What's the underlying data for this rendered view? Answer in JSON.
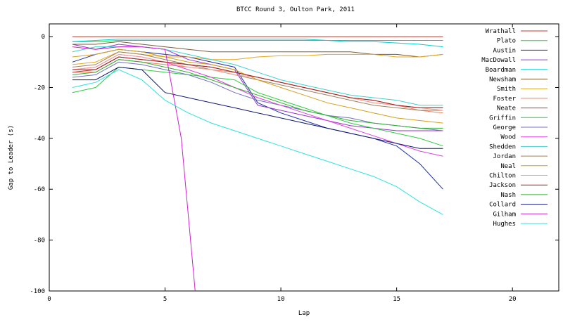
{
  "chart_data": {
    "type": "line",
    "title": "BTCC Round 3, Oulton Park, 2011",
    "xlabel": "Lap",
    "ylabel": "Gap to Leader (s)",
    "xlim": [
      0,
      22
    ],
    "ylim": [
      -100,
      5
    ],
    "xticks": [
      0,
      5,
      10,
      15,
      20
    ],
    "yticks": [
      0,
      -20,
      -40,
      -60,
      -80,
      -100
    ],
    "grid": false,
    "legend": "right",
    "series": [
      {
        "name": "Wrathall",
        "color": "#c0392b",
        "x": [
          1,
          2,
          3,
          4,
          5,
          6,
          7,
          8,
          9,
          10,
          11,
          12,
          13,
          14,
          15,
          16,
          17
        ],
        "y": [
          0,
          0,
          0,
          0,
          0,
          0,
          0,
          0,
          0,
          0,
          0,
          0,
          0,
          0,
          0,
          0,
          0
        ]
      },
      {
        "name": "Plato",
        "color": "#2ecc40",
        "x": [
          1,
          2,
          3,
          4,
          5,
          6,
          7,
          8,
          9,
          10,
          11,
          12,
          13,
          14,
          15,
          16,
          17
        ],
        "y": [
          -2,
          -2,
          -1.5,
          -1.5,
          -1.5,
          -1.5,
          -1.5,
          -1.5,
          -1.5,
          -1.5,
          -1.5,
          -1.5,
          -1.5,
          -1.5,
          -1.5,
          -1.5,
          -1.5
        ]
      },
      {
        "name": "Austin",
        "color": "#1f2fa8",
        "x": [
          1,
          2,
          3,
          4,
          5,
          6,
          7,
          8,
          9,
          10,
          11,
          12,
          13,
          14,
          15,
          16,
          17
        ],
        "y": [
          -10,
          -7,
          -5,
          -6,
          -7,
          -8,
          -10,
          -12,
          -26,
          -30,
          -33,
          -36,
          -38,
          -40,
          -43,
          -50,
          -60
        ]
      },
      {
        "name": "MacDowall",
        "color": "#9b30d0",
        "x": [
          1,
          2,
          3,
          4,
          5,
          6,
          7,
          8,
          9,
          10,
          11,
          12,
          13,
          14,
          15,
          16,
          17
        ],
        "y": [
          -3,
          -5,
          -3,
          -4,
          -5,
          -9,
          -11,
          -13,
          -27,
          -29,
          -31,
          -33,
          -35,
          -36,
          -37,
          -37,
          -37
        ]
      },
      {
        "name": "Boardman",
        "color": "#00d0d0",
        "x": [
          1,
          2,
          3,
          4,
          5,
          6,
          7,
          8,
          9,
          10,
          11,
          12,
          13,
          14,
          15,
          16,
          17
        ],
        "y": [
          -2,
          -1.5,
          -1,
          -1,
          -1,
          -1,
          -1,
          -1,
          -1,
          -1,
          -1,
          -1.5,
          -2,
          -2,
          -2.5,
          -3,
          -4
        ]
      },
      {
        "name": "Newsham",
        "color": "#7a5c3a",
        "x": [
          1,
          2,
          3,
          4,
          5,
          6,
          7,
          8,
          9,
          10,
          11,
          12,
          13,
          14,
          15,
          16,
          17
        ],
        "y": [
          -3,
          -3,
          -2,
          -3,
          -4,
          -5,
          -6,
          -6,
          -6,
          -6,
          -6,
          -6,
          -6,
          -7,
          -7,
          -8,
          -7
        ]
      },
      {
        "name": "Smith",
        "color": "#e6a817",
        "x": [
          1,
          2,
          3,
          4,
          5,
          6,
          7,
          8,
          9,
          10,
          11,
          12,
          13,
          14,
          15,
          16,
          17
        ],
        "y": [
          -11,
          -10,
          -6,
          -7,
          -8,
          -8,
          -9,
          -9,
          -8,
          -7.5,
          -7.5,
          -7,
          -7,
          -7,
          -8,
          -8,
          -7
        ]
      },
      {
        "name": "Foster",
        "color": "#f08060",
        "x": [
          1,
          2,
          3,
          4,
          5,
          6,
          7,
          8,
          9,
          10,
          11,
          12,
          13,
          14,
          15,
          16,
          17
        ],
        "y": [
          -14,
          -14,
          -9,
          -10,
          -11,
          -12,
          -13,
          -14,
          -16,
          -18,
          -20,
          -22,
          -24,
          -26,
          -27,
          -29,
          -30
        ]
      },
      {
        "name": "Neate",
        "color": "#c0392b",
        "x": [
          1,
          2,
          3,
          4,
          5,
          6,
          7,
          8,
          9,
          10,
          11,
          12,
          13,
          14,
          15,
          16,
          17
        ],
        "y": [
          -14,
          -13,
          -8,
          -9,
          -10,
          -11,
          -12,
          -14,
          -16,
          -18,
          -20,
          -22,
          -24,
          -25,
          -27,
          -28,
          -28
        ]
      },
      {
        "name": "Griffin",
        "color": "#2ecc40",
        "x": [
          1,
          2,
          3,
          4,
          5,
          6,
          7,
          8,
          9,
          10,
          11,
          12,
          13,
          14,
          15,
          16,
          17
        ],
        "y": [
          -22,
          -20,
          -12,
          -13,
          -14,
          -15,
          -16,
          -17,
          -22,
          -25,
          -28,
          -31,
          -34,
          -36,
          -38,
          -40,
          -43
        ]
      },
      {
        "name": "George",
        "color": "#7070c0",
        "x": [
          1,
          2,
          3,
          4,
          5,
          6,
          7,
          8,
          9,
          10,
          11,
          12,
          13,
          14,
          15,
          16,
          17
        ],
        "y": [
          -16,
          -15,
          -10,
          -11,
          -13,
          -15,
          -18,
          -22,
          -25,
          -27,
          -29,
          -31,
          -32,
          -34,
          -35,
          -36,
          -37
        ]
      },
      {
        "name": "Wood",
        "color": "#e040e0",
        "x": [
          1,
          2,
          3,
          4,
          5,
          6,
          7,
          8,
          9,
          10,
          11,
          12,
          13,
          14,
          15,
          16,
          17
        ],
        "y": [
          -13,
          -12,
          -7,
          -8,
          -10,
          -13,
          -16,
          -20,
          -24,
          -27,
          -30,
          -33,
          -36,
          -39,
          -42,
          -45,
          -47
        ]
      },
      {
        "name": "Shedden",
        "color": "#40d0d0",
        "x": [
          1,
          2,
          3,
          4,
          5,
          6,
          7,
          8,
          9,
          10,
          11,
          12,
          13,
          14,
          15,
          16,
          17
        ],
        "y": [
          -6,
          -4,
          -4,
          -4,
          -5,
          -7,
          -9,
          -11,
          -14,
          -17,
          -19,
          -21,
          -23,
          -24,
          -25,
          -27,
          -27
        ]
      },
      {
        "name": "Jordan",
        "color": "#a08060",
        "x": [
          1,
          2,
          3,
          4,
          5,
          6,
          7,
          8,
          9,
          10,
          11,
          12,
          13,
          14,
          15,
          16,
          17
        ],
        "y": [
          -12,
          -11,
          -6,
          -7,
          -9,
          -11,
          -13,
          -15,
          -17,
          -19,
          -21,
          -23,
          -25,
          -27,
          -28,
          -29,
          -29
        ]
      },
      {
        "name": "Neal",
        "color": "#d4a017",
        "x": [
          1,
          2,
          3,
          4,
          5,
          6,
          7,
          8,
          9,
          10,
          11,
          12,
          13,
          14,
          15,
          16,
          17
        ],
        "y": [
          -8,
          -7,
          -5,
          -6,
          -8,
          -10,
          -11,
          -13,
          -17,
          -20,
          -23,
          -26,
          -28,
          -30,
          -32,
          -33,
          -34
        ]
      },
      {
        "name": "Chilton",
        "color": "#f4a090",
        "x": [
          1,
          2,
          3,
          4,
          5,
          6,
          7,
          8,
          9,
          10,
          11,
          12,
          13,
          14,
          15,
          16,
          17
        ],
        "y": [
          -13,
          -12,
          -7,
          -8,
          -10,
          -12,
          -13,
          -15,
          -16,
          -18,
          -20,
          -22,
          -24,
          -26,
          -27,
          -28,
          -29
        ]
      },
      {
        "name": "Jackson",
        "color": "#a02020",
        "x": [
          1,
          2,
          3,
          4,
          5,
          6,
          7,
          8,
          9,
          10,
          11,
          12,
          13,
          14,
          15,
          16,
          17
        ],
        "y": [
          -13,
          -13,
          -8,
          -9,
          -10,
          -11,
          -12,
          -14,
          -16,
          -18,
          -20,
          -22,
          -24,
          -25,
          -27,
          -28,
          -28
        ]
      },
      {
        "name": "Nash",
        "color": "#30b030",
        "x": [
          1,
          2,
          3,
          4,
          5,
          6,
          7,
          8,
          9,
          10,
          11,
          12,
          13,
          14,
          15,
          16,
          17
        ],
        "y": [
          -15,
          -14,
          -9,
          -10,
          -12,
          -14,
          -17,
          -20,
          -23,
          -26,
          -29,
          -31,
          -33,
          -34,
          -35,
          -36,
          -36
        ]
      },
      {
        "name": "Collard",
        "color": "#101870",
        "x": [
          1,
          2,
          3,
          4,
          5,
          6,
          7,
          8,
          9,
          10,
          11,
          12,
          13,
          14,
          15,
          16,
          17
        ],
        "y": [
          -17,
          -17,
          -12,
          -13,
          -22,
          -24,
          -26,
          -28,
          -30,
          -32,
          -34,
          -36,
          -38,
          -40,
          -42,
          -44,
          -44
        ]
      },
      {
        "name": "Gilham",
        "color": "#d020d0",
        "x": [
          1,
          2,
          3,
          4,
          5,
          5.7,
          6.3
        ],
        "y": [
          -4,
          -5,
          -4,
          -4,
          -5,
          -40,
          -100
        ]
      },
      {
        "name": "Hughes",
        "color": "#30e0e0",
        "x": [
          1,
          2,
          3,
          4,
          5,
          6,
          7,
          8,
          9,
          10,
          11,
          12,
          13,
          14,
          15,
          16,
          17
        ],
        "y": [
          -20,
          -18,
          -13,
          -17,
          -25,
          -30,
          -34,
          -37,
          -40,
          -43,
          -46,
          -49,
          -52,
          -55,
          -59,
          -65,
          -70
        ]
      }
    ]
  }
}
